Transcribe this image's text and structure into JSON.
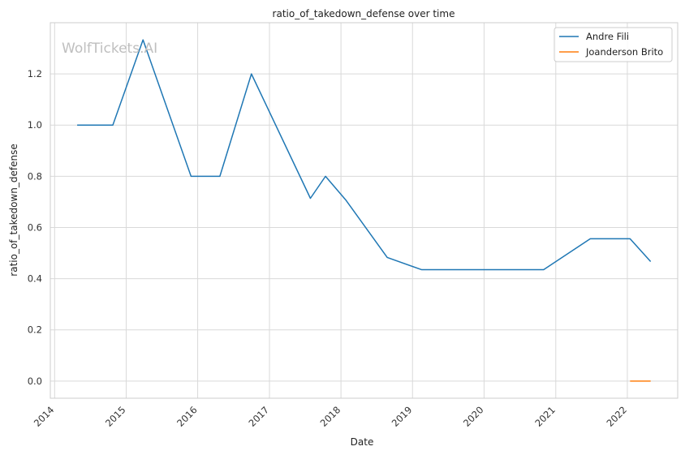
{
  "chart_data": {
    "type": "line",
    "title": "ratio_of_takedown_defense over time",
    "xlabel": "Date",
    "ylabel": "ratio_of_takedown_defense",
    "watermark": "WolfTickets.AI",
    "x_tick_labels": [
      "2014",
      "2015",
      "2016",
      "2017",
      "2018",
      "2019",
      "2020",
      "2021",
      "2022"
    ],
    "y_tick_labels": [
      "0.0",
      "0.2",
      "0.4",
      "0.6",
      "0.8",
      "1.0",
      "1.2"
    ],
    "y_ticks": [
      0.0,
      0.2,
      0.4,
      0.6,
      0.8,
      1.0,
      1.2
    ],
    "xlim": [
      "2013-12-10",
      "2022-09-15"
    ],
    "ylim": [
      -0.067,
      1.4
    ],
    "grid": true,
    "legend_position": "top-right",
    "series": [
      {
        "name": "Andre Fili",
        "color": "#1f77b4",
        "points": [
          [
            "2014-04-26",
            1.0
          ],
          [
            "2014-10-25",
            1.0
          ],
          [
            "2015-03-28",
            1.333
          ],
          [
            "2015-11-28",
            0.8
          ],
          [
            "2016-04-23",
            0.8
          ],
          [
            "2016-10-01",
            1.2
          ],
          [
            "2017-07-29",
            0.714
          ],
          [
            "2017-10-14",
            0.8
          ],
          [
            "2018-01-27",
            0.706
          ],
          [
            "2018-08-25",
            0.483
          ],
          [
            "2019-02-17",
            0.435
          ],
          [
            "2020-10-31",
            0.435
          ],
          [
            "2021-06-26",
            0.556
          ],
          [
            "2022-01-15",
            0.556
          ],
          [
            "2022-04-30",
            0.467
          ]
        ]
      },
      {
        "name": "Joanderson Brito",
        "color": "#ff7f0e",
        "points": [
          [
            "2022-01-15",
            0.0
          ],
          [
            "2022-04-30",
            0.0
          ]
        ]
      }
    ]
  }
}
